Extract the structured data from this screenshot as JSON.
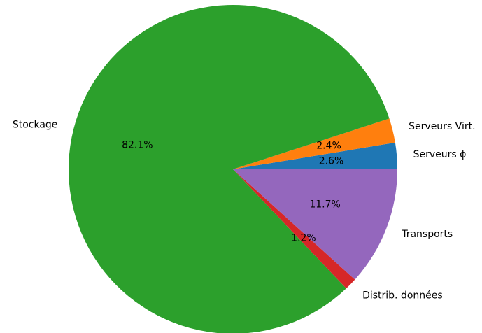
{
  "chart_data": {
    "type": "pie",
    "start_angle_deg": 0,
    "direction": "counterclockwise",
    "title": "",
    "slices": [
      {
        "label": "Serveurs ϕ",
        "value": 2.6,
        "pct_label": "2.6%",
        "color": "#1f77b4"
      },
      {
        "label": "Serveurs Virt.",
        "value": 2.4,
        "pct_label": "2.4%",
        "color": "#ff7f0e"
      },
      {
        "label": "Stockage",
        "value": 82.1,
        "pct_label": "82.1%",
        "color": "#2ca02c"
      },
      {
        "label": "Distrib. données",
        "value": 1.2,
        "pct_label": "1.2%",
        "color": "#d62728"
      },
      {
        "label": "Transports",
        "value": 11.7,
        "pct_label": "11.7%",
        "color": "#9467bd"
      }
    ]
  }
}
